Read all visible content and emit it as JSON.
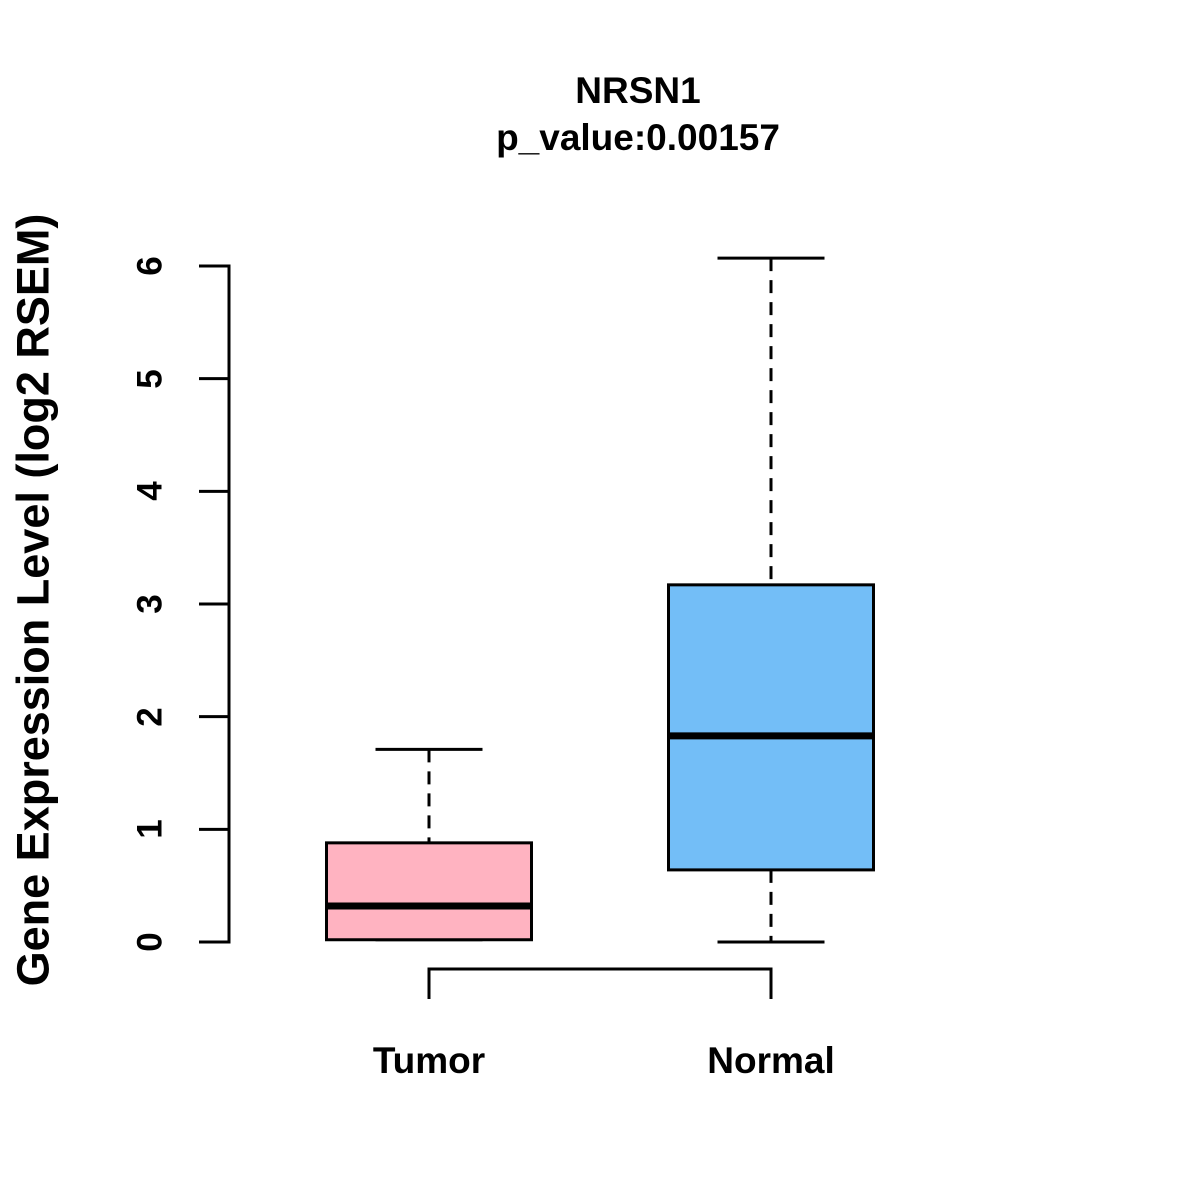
{
  "chart_data": {
    "type": "box",
    "title": "NRSN1",
    "subtitle": "p_value:0.00157",
    "xlabel": "",
    "ylabel": "Gene Expression Level (log2 RSEM)",
    "ylim": [
      0,
      6
    ],
    "yticks": [
      0,
      1,
      2,
      3,
      4,
      5,
      6
    ],
    "grid": "off",
    "legend": "none",
    "categories": [
      "Tumor",
      "Normal"
    ],
    "series": [
      {
        "name": "Tumor",
        "fill_color": "#FFB3C1",
        "whisker_low": 0.02,
        "q1": 0.02,
        "median": 0.32,
        "q3": 0.88,
        "whisker_high": 1.71
      },
      {
        "name": "Normal",
        "fill_color": "#73BEF7",
        "whisker_low": 0.0,
        "q1": 0.64,
        "median": 1.83,
        "q3": 3.17,
        "whisker_high": 6.07
      }
    ],
    "annotations": {
      "comparison_bracket": {
        "between": [
          "Tumor",
          "Normal"
        ],
        "position": "below-boxes"
      }
    },
    "styles": {
      "box_border_color": "#000000",
      "median_color": "#000000",
      "whisker_style": "dashed",
      "background": "#FFFFFF"
    }
  }
}
